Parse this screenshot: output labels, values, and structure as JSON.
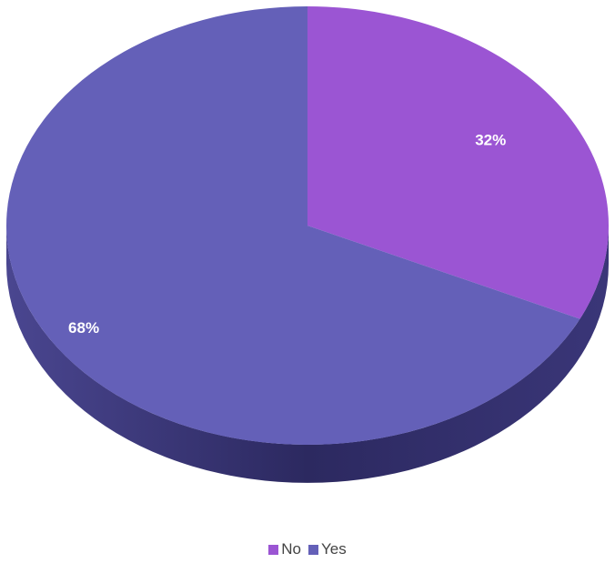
{
  "chart_data": {
    "type": "pie",
    "style": "3d",
    "slices": [
      {
        "label": "No",
        "value": 32,
        "value_label": "32%",
        "color": "#9b55d3"
      },
      {
        "label": "Yes",
        "value": 68,
        "value_label": "68%",
        "color": "#6460b8"
      }
    ],
    "legend_position": "bottom"
  },
  "legend": {
    "items": [
      {
        "label": "No",
        "color": "#9b55d3"
      },
      {
        "label": "Yes",
        "color": "#6460b8"
      }
    ]
  }
}
